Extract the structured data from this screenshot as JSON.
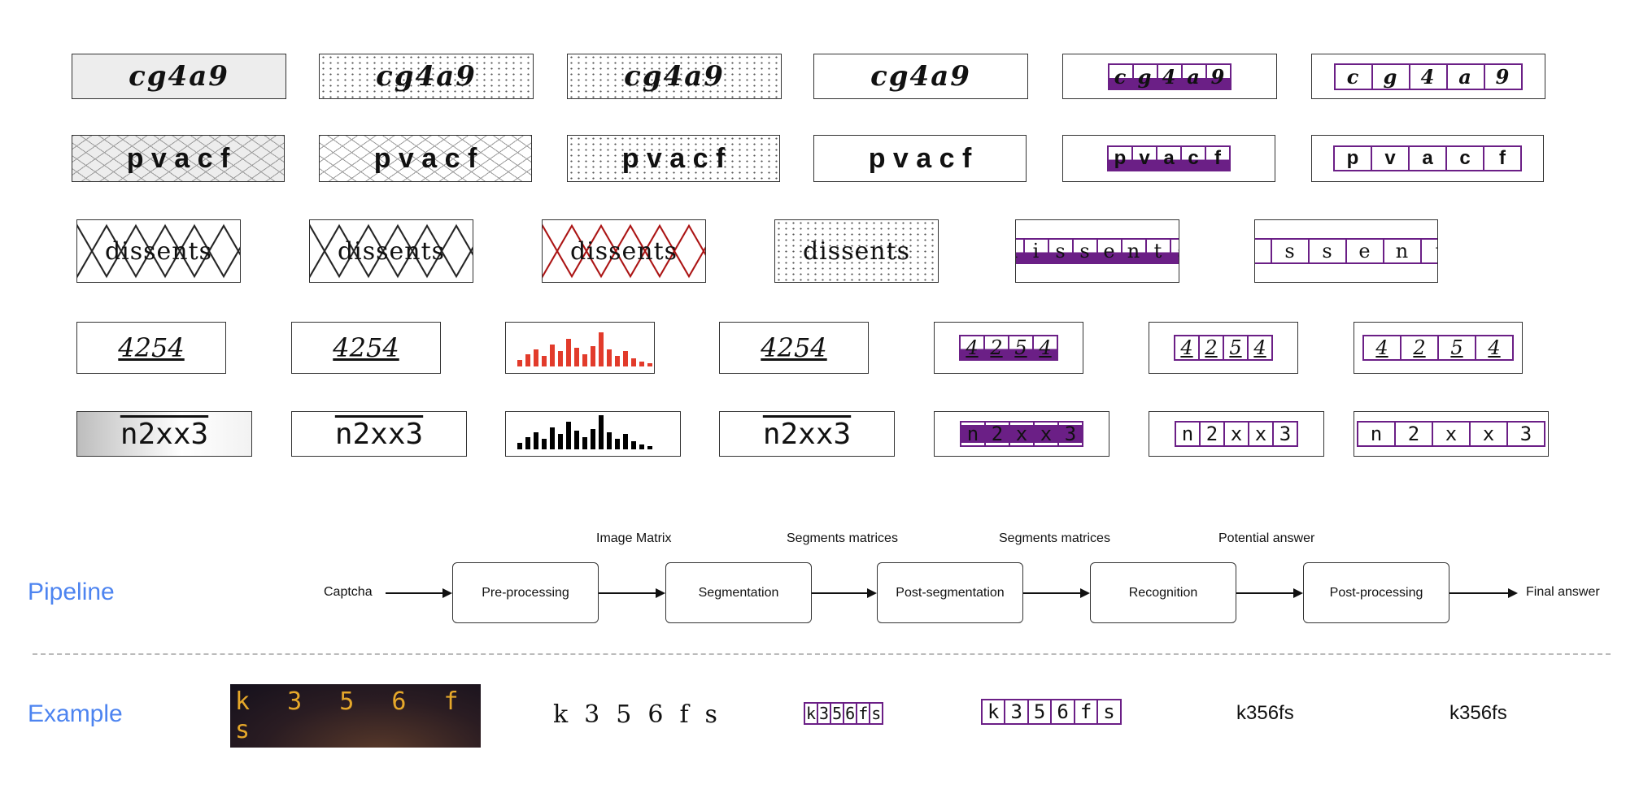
{
  "captcha_grid": {
    "rows": [
      {
        "text": "cg4a9",
        "chars": [
          "c",
          "g",
          "4",
          "a",
          "9"
        ],
        "variants": [
          "noisy-grey",
          "noisy",
          "noisy-dense",
          "clean",
          "segmented-filled",
          "segmented"
        ]
      },
      {
        "text": "pvacf",
        "chars": [
          "p",
          "v",
          "a",
          "c",
          "f"
        ],
        "variants": [
          "hatched-grey",
          "hatched",
          "clean-specks",
          "clean",
          "segmented-filled",
          "segmented"
        ]
      },
      {
        "text": "dissents",
        "chars": [
          "d",
          "i",
          "s",
          "s",
          "e",
          "n",
          "t",
          "s"
        ],
        "variants": [
          "zigzag",
          "zigzag",
          "zigzag-red",
          "clean-noisy",
          "segmented-filled",
          "segmented"
        ]
      },
      {
        "text": "4254",
        "chars": [
          "4",
          "2",
          "5",
          "4"
        ],
        "variants": [
          "script",
          "script",
          "histogram-red",
          "script-clean",
          "segmented-filled",
          "segmented",
          "segmented"
        ]
      },
      {
        "text": "n2xx3",
        "chars": [
          "n",
          "2",
          "x",
          "x",
          "3"
        ],
        "variants": [
          "gradient-strike",
          "strike",
          "histogram-black",
          "strike-clean",
          "segmented-purple",
          "segmented",
          "segmented"
        ]
      }
    ],
    "colors": {
      "segment": "#6b1f86",
      "histogram_red": "#e23b2b",
      "histogram_black": "#000000"
    }
  },
  "pipeline": {
    "label": "Pipeline",
    "input_label": "Captcha",
    "stages": [
      "Pre-processing",
      "Segmentation",
      "Post-segmentation",
      "Recognition",
      "Post-processing"
    ],
    "edge_labels": [
      "Image Matrix",
      "Segments matrices",
      "Segments matrices",
      "Potential answer"
    ],
    "output_label": "Final answer"
  },
  "example": {
    "label": "Example",
    "captcha_text": "k 3 5 6 f s",
    "cleaned_text": "k356fs",
    "segmented_chars": [
      "k",
      "3",
      "5",
      "6",
      "f",
      "s"
    ],
    "recognized": "k356fs",
    "final_answer": "k356fs"
  },
  "colors": {
    "section_label": "#4d84f0",
    "divider": "#bbbbbb"
  }
}
